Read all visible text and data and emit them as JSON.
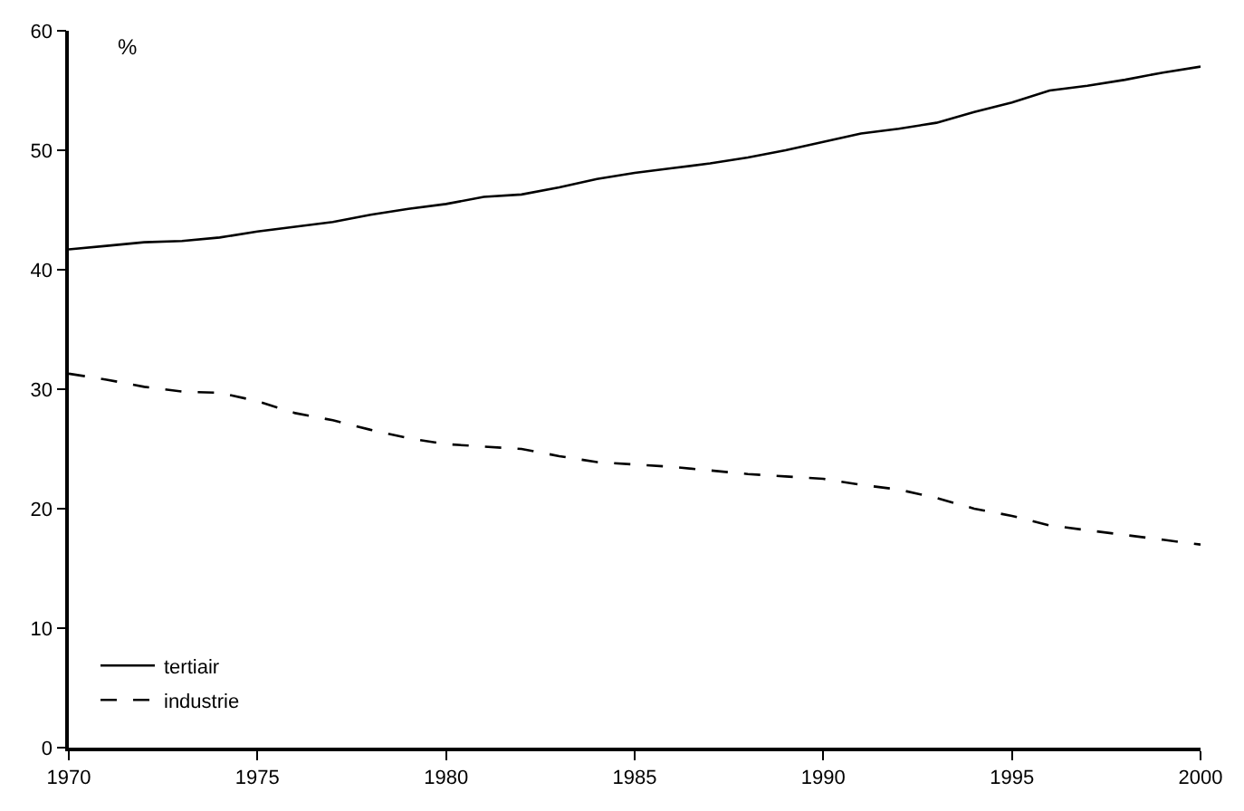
{
  "chart_data": {
    "type": "line",
    "ylabel": "%",
    "x": [
      1970,
      1971,
      1972,
      1973,
      1974,
      1975,
      1976,
      1977,
      1978,
      1979,
      1980,
      1981,
      1982,
      1983,
      1984,
      1985,
      1986,
      1987,
      1988,
      1989,
      1990,
      1991,
      1992,
      1993,
      1994,
      1995,
      1996,
      1997,
      1998,
      1999,
      2000
    ],
    "series": [
      {
        "name": "tertiair",
        "color": "#000000",
        "line_style": "solid",
        "values": [
          41.7,
          42.0,
          42.3,
          42.4,
          42.7,
          43.2,
          43.6,
          44.0,
          44.6,
          45.1,
          45.5,
          46.1,
          46.3,
          46.9,
          47.6,
          48.1,
          48.5,
          48.9,
          49.4,
          50.0,
          50.7,
          51.4,
          51.8,
          52.3,
          53.2,
          54.0,
          55.0,
          55.4,
          55.9,
          56.5,
          57.0
        ]
      },
      {
        "name": "industrie",
        "color": "#000000",
        "line_style": "dashed",
        "values": [
          31.3,
          30.8,
          30.2,
          29.8,
          29.7,
          29.0,
          28.0,
          27.4,
          26.6,
          25.9,
          25.4,
          25.2,
          25.0,
          24.4,
          23.9,
          23.7,
          23.5,
          23.2,
          22.9,
          22.7,
          22.5,
          22.0,
          21.6,
          20.9,
          20.0,
          19.4,
          18.6,
          18.2,
          17.8,
          17.4,
          17.0
        ]
      }
    ],
    "xlim": [
      1970,
      2000
    ],
    "xticks": [
      1970,
      1975,
      1980,
      1985,
      1990,
      1995,
      2000
    ],
    "ylim": [
      0,
      60
    ],
    "yticks": [
      0,
      10,
      20,
      30,
      40,
      50,
      60
    ],
    "legend": "bottom left",
    "marker": "none"
  }
}
